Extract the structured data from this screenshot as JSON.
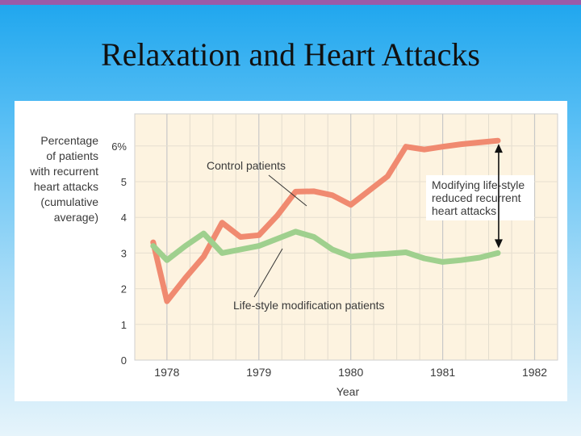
{
  "slide": {
    "title": "Relaxation and Heart Attacks"
  },
  "chart_data": {
    "type": "line",
    "ylabel_lines": [
      "Percentage",
      "of patients",
      "with recurrent",
      "heart attacks",
      "(cumulative",
      "average)"
    ],
    "xlabel": "Year",
    "ylim": [
      0,
      6.9
    ],
    "xlim": [
      1977.65,
      1982.25
    ],
    "y_ticks": [
      {
        "value": 0,
        "label": "0"
      },
      {
        "value": 1,
        "label": "1"
      },
      {
        "value": 2,
        "label": "2"
      },
      {
        "value": 3,
        "label": "3"
      },
      {
        "value": 4,
        "label": "4"
      },
      {
        "value": 5,
        "label": "5"
      },
      {
        "value": 6,
        "label": "6%"
      }
    ],
    "x_ticks": [
      {
        "value": 1978,
        "label": "1978"
      },
      {
        "value": 1979,
        "label": "1979"
      },
      {
        "value": 1980,
        "label": "1980"
      },
      {
        "value": 1981,
        "label": "1981"
      },
      {
        "value": 1982,
        "label": "1982"
      }
    ],
    "grid": true,
    "series": [
      {
        "name": "Control patients",
        "color": "#f08a70",
        "points": [
          [
            1977.85,
            3.3
          ],
          [
            1978.0,
            1.65
          ],
          [
            1978.2,
            2.3
          ],
          [
            1978.4,
            2.9
          ],
          [
            1978.6,
            3.85
          ],
          [
            1978.8,
            3.45
          ],
          [
            1979.0,
            3.5
          ],
          [
            1979.2,
            4.05
          ],
          [
            1979.4,
            4.72
          ],
          [
            1979.6,
            4.73
          ],
          [
            1979.8,
            4.62
          ],
          [
            1980.0,
            4.35
          ],
          [
            1980.2,
            4.75
          ],
          [
            1980.4,
            5.15
          ],
          [
            1980.6,
            5.98
          ],
          [
            1980.8,
            5.9
          ],
          [
            1981.0,
            5.98
          ],
          [
            1981.2,
            6.05
          ],
          [
            1981.4,
            6.1
          ],
          [
            1981.6,
            6.15
          ]
        ]
      },
      {
        "name": "Life-style modification patients",
        "color": "#9fd08e",
        "points": [
          [
            1977.85,
            3.2
          ],
          [
            1978.0,
            2.8
          ],
          [
            1978.2,
            3.2
          ],
          [
            1978.4,
            3.55
          ],
          [
            1978.6,
            3.0
          ],
          [
            1978.8,
            3.1
          ],
          [
            1979.0,
            3.2
          ],
          [
            1979.2,
            3.4
          ],
          [
            1979.4,
            3.6
          ],
          [
            1979.6,
            3.45
          ],
          [
            1979.8,
            3.1
          ],
          [
            1980.0,
            2.9
          ],
          [
            1980.2,
            2.95
          ],
          [
            1980.4,
            2.98
          ],
          [
            1980.6,
            3.02
          ],
          [
            1980.8,
            2.85
          ],
          [
            1981.0,
            2.75
          ],
          [
            1981.2,
            2.8
          ],
          [
            1981.4,
            2.87
          ],
          [
            1981.6,
            3.0
          ]
        ]
      }
    ],
    "annotations": [
      {
        "text": "Control patients"
      },
      {
        "text": "Life-style modification patients"
      },
      {
        "lines": [
          "Modifying life-style",
          "reduced recurrent",
          "heart attacks"
        ]
      }
    ],
    "gap_arrow": {
      "x": 1981.6,
      "y_from": 6.15,
      "y_to": 3.0
    }
  }
}
